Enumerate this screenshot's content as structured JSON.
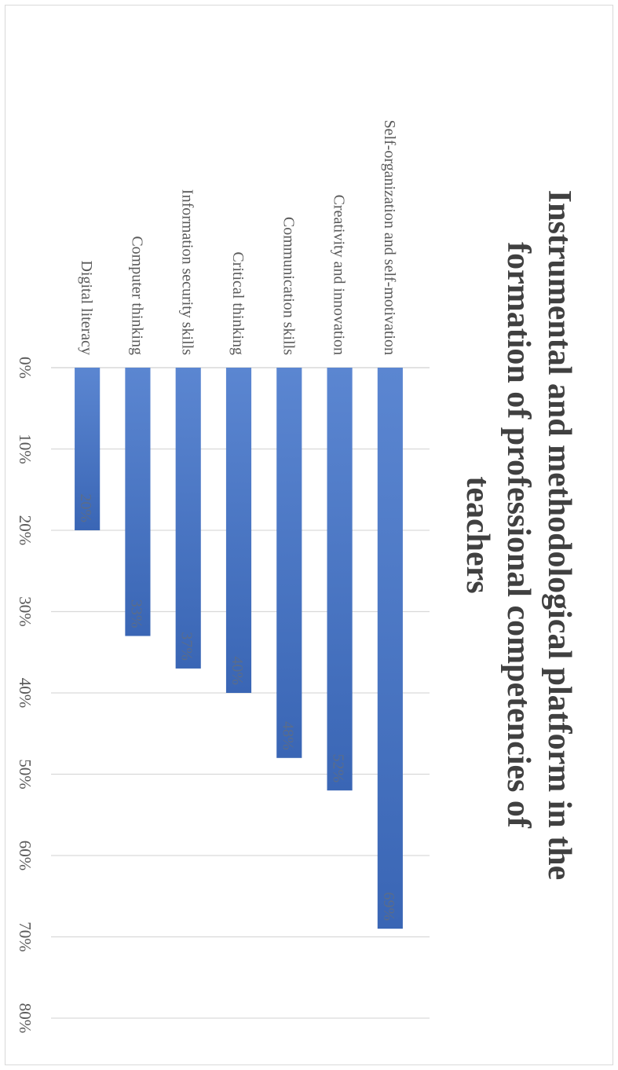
{
  "chart_data": {
    "type": "bar",
    "orientation": "rotated-90-clockwise",
    "title": "Instrumental and methodological platform in the formation of professional competencies of teachers",
    "title_lines": [
      "Instrumental and methodological platform in the",
      "formation of professional competencies of",
      "teachers"
    ],
    "categories": [
      "Self-organization and self-motivation",
      "Creativity and innovation",
      "Communication skills",
      "Critical thinking",
      "Information security skills",
      "Computer thinking",
      "Digital literacy"
    ],
    "values": [
      69,
      52,
      48,
      40,
      37,
      33,
      20
    ],
    "data_labels": [
      "69%",
      "52%",
      "48%",
      "40%",
      "37%",
      "33%",
      "20%"
    ],
    "ylim": [
      0,
      80
    ],
    "yticks": [
      0,
      10,
      20,
      30,
      40,
      50,
      60,
      70,
      80
    ],
    "ytick_labels": [
      "0%",
      "10%",
      "20%",
      "30%",
      "40%",
      "50%",
      "60%",
      "70%",
      "80%"
    ],
    "grid": true,
    "legend": "none",
    "colors": {
      "bar_light": "#5b86d1",
      "bar_dark": "#3a66b5",
      "grid": "#d9d9d9",
      "axis_text": "#595959",
      "title": "#404040",
      "data_label": "#5a6c8a"
    }
  }
}
